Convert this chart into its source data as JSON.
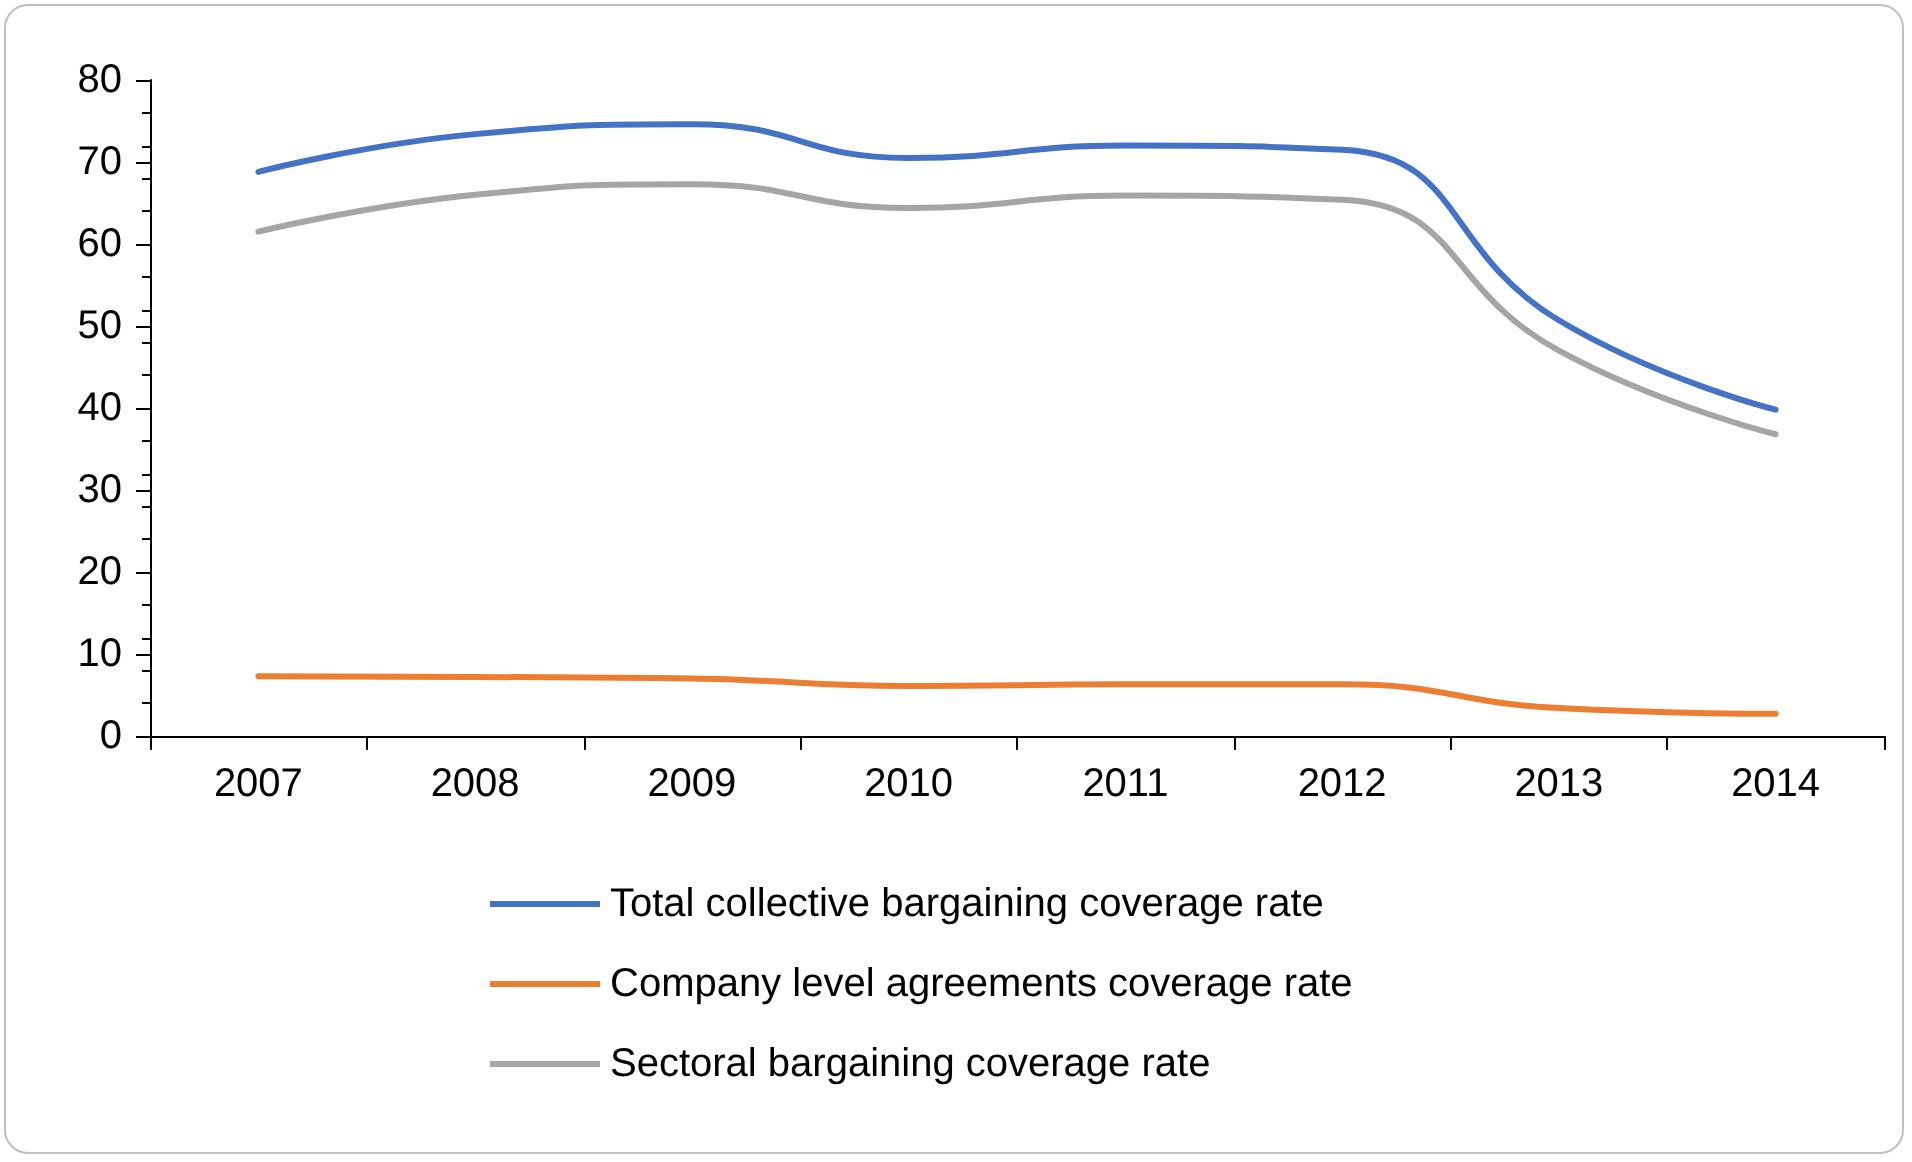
{
  "chart_data": {
    "type": "line",
    "categories": [
      "2007",
      "2008",
      "2009",
      "2010",
      "2011",
      "2012",
      "2013",
      "2014"
    ],
    "series": [
      {
        "name": "Total collective bargaining coverage rate",
        "color": "#4472c4",
        "values": [
          68.8,
          73.4,
          74.6,
          70.5,
          72,
          71.5,
          50.7,
          39.8
        ]
      },
      {
        "name": "Company level agreements coverage rate",
        "color": "#ed7d31",
        "values": [
          7.3,
          7.2,
          7,
          6.1,
          6.3,
          6.3,
          3.4,
          2.7
        ]
      },
      {
        "name": "Sectoral bargaining coverage rate",
        "color": "#a5a5a5",
        "values": [
          61.5,
          66,
          67.3,
          64.4,
          65.9,
          65.4,
          47,
          36.8
        ]
      }
    ],
    "ylim": [
      0,
      80
    ],
    "yticks": [
      0,
      10,
      20,
      30,
      40,
      50,
      60,
      70,
      80
    ],
    "grid": false,
    "legend": "bottom",
    "marker": "none",
    "line_style": "solid"
  }
}
